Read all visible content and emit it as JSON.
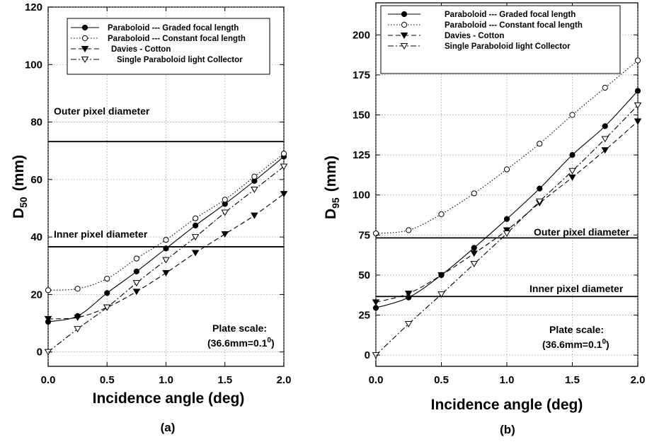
{
  "chart_data": [
    {
      "type": "line",
      "panel_label": "(a)",
      "xlabel": "Incidence angle (deg)",
      "ylabel_main": "D",
      "ylabel_sub": "50",
      "ylabel_unit": "(mm)",
      "xlim": [
        0,
        2.0
      ],
      "ylim": [
        -5,
        120
      ],
      "xticks": [
        0,
        0.5,
        1.0,
        1.5,
        2.0
      ],
      "xtick_labels": [
        "0.0",
        "0.5",
        "1.0",
        "1.5",
        "2.0"
      ],
      "yticks": [
        0,
        20,
        40,
        60,
        80,
        100,
        120
      ],
      "ytick_labels": [
        "0",
        "20",
        "40",
        "60",
        "80",
        "100",
        "120"
      ],
      "grid": true,
      "legend_position": "top",
      "x": [
        0,
        0.25,
        0.5,
        0.75,
        1.0,
        1.25,
        1.5,
        1.75,
        2.0
      ],
      "series": [
        {
          "name": "Paraboloid  ---  Graded focal length",
          "values": [
            10.5,
            12.5,
            20.5,
            28,
            36,
            44,
            51.5,
            59.5,
            68
          ],
          "marker": "filled-circle",
          "dash": "solid"
        },
        {
          "name": "Paraboloid  --- Constant focal length",
          "values": [
            21.5,
            22,
            25.5,
            32.5,
            39,
            46.5,
            53,
            61,
            69
          ],
          "marker": "open-circle",
          "dash": "dotted"
        },
        {
          "name": "Davies - Cotton",
          "values": [
            11.5,
            12,
            15.5,
            21,
            27.5,
            34.5,
            41,
            47.5,
            55
          ],
          "marker": "filled-triangle-down",
          "dash": "dashed"
        },
        {
          "name": "Single  Paraboloid  light Collector",
          "values": [
            0,
            8,
            15.5,
            24,
            32,
            40,
            48.5,
            56.5,
            64.5
          ],
          "marker": "open-triangle-down",
          "dash": "dashdot"
        }
      ],
      "reference_lines": [
        {
          "label": "Outer pixel diameter",
          "y": 73.2
        },
        {
          "label": "Inner pixel diameter",
          "y": 36.6
        }
      ],
      "annotation_line1": "Plate scale:",
      "annotation_line2": "(36.6mm=0.1",
      "annotation_sup": "0",
      "annotation_end": ")"
    },
    {
      "type": "line",
      "panel_label": "(b)",
      "xlabel": "Incidence  angle  (deg)",
      "ylabel_main": "D",
      "ylabel_sub": "95",
      "ylabel_unit": "(mm)",
      "xlim": [
        0,
        2.0
      ],
      "ylim": [
        -7,
        220
      ],
      "xticks": [
        0,
        0.5,
        1.0,
        1.5,
        2.0
      ],
      "xtick_labels": [
        "0.0",
        "0.5",
        "1.0",
        "1.5",
        "2.0"
      ],
      "yticks": [
        0,
        25,
        50,
        75,
        100,
        125,
        150,
        175,
        200
      ],
      "ytick_labels": [
        "0",
        "25",
        "50",
        "75",
        "100",
        "125",
        "150",
        "175",
        "200"
      ],
      "grid": true,
      "legend_position": "top",
      "x": [
        0,
        0.25,
        0.5,
        0.75,
        1.0,
        1.25,
        1.5,
        1.75,
        2.0
      ],
      "series": [
        {
          "name": "Paraboloid  ---  Graded focal length",
          "values": [
            29.5,
            36,
            50,
            67,
            85,
            104,
            125,
            143,
            165
          ],
          "marker": "filled-circle",
          "dash": "solid"
        },
        {
          "name": "Paraboloid  --- Constant focal length",
          "values": [
            76,
            78,
            88,
            101,
            116,
            132,
            150,
            167,
            184
          ],
          "marker": "open-circle",
          "dash": "dotted"
        },
        {
          "name": "Davies - Cotton",
          "values": [
            33,
            38.5,
            50,
            63.5,
            78,
            95,
            111,
            128,
            146
          ],
          "marker": "filled-triangle-down",
          "dash": "dashed"
        },
        {
          "name": "Single  Paraboloid  light Collector",
          "values": [
            0,
            19.5,
            38,
            57,
            76,
            96,
            115,
            135,
            156
          ],
          "marker": "open-triangle-down",
          "dash": "dashdot"
        }
      ],
      "reference_lines": [
        {
          "label": "Outer pixel diameter",
          "y": 73.2
        },
        {
          "label": "Inner pixel diameter",
          "y": 36.6
        }
      ],
      "annotation_line1": "Plate scale:",
      "annotation_line2": "(36.6mm=0.1",
      "annotation_sup": "0",
      "annotation_end": ")"
    }
  ]
}
